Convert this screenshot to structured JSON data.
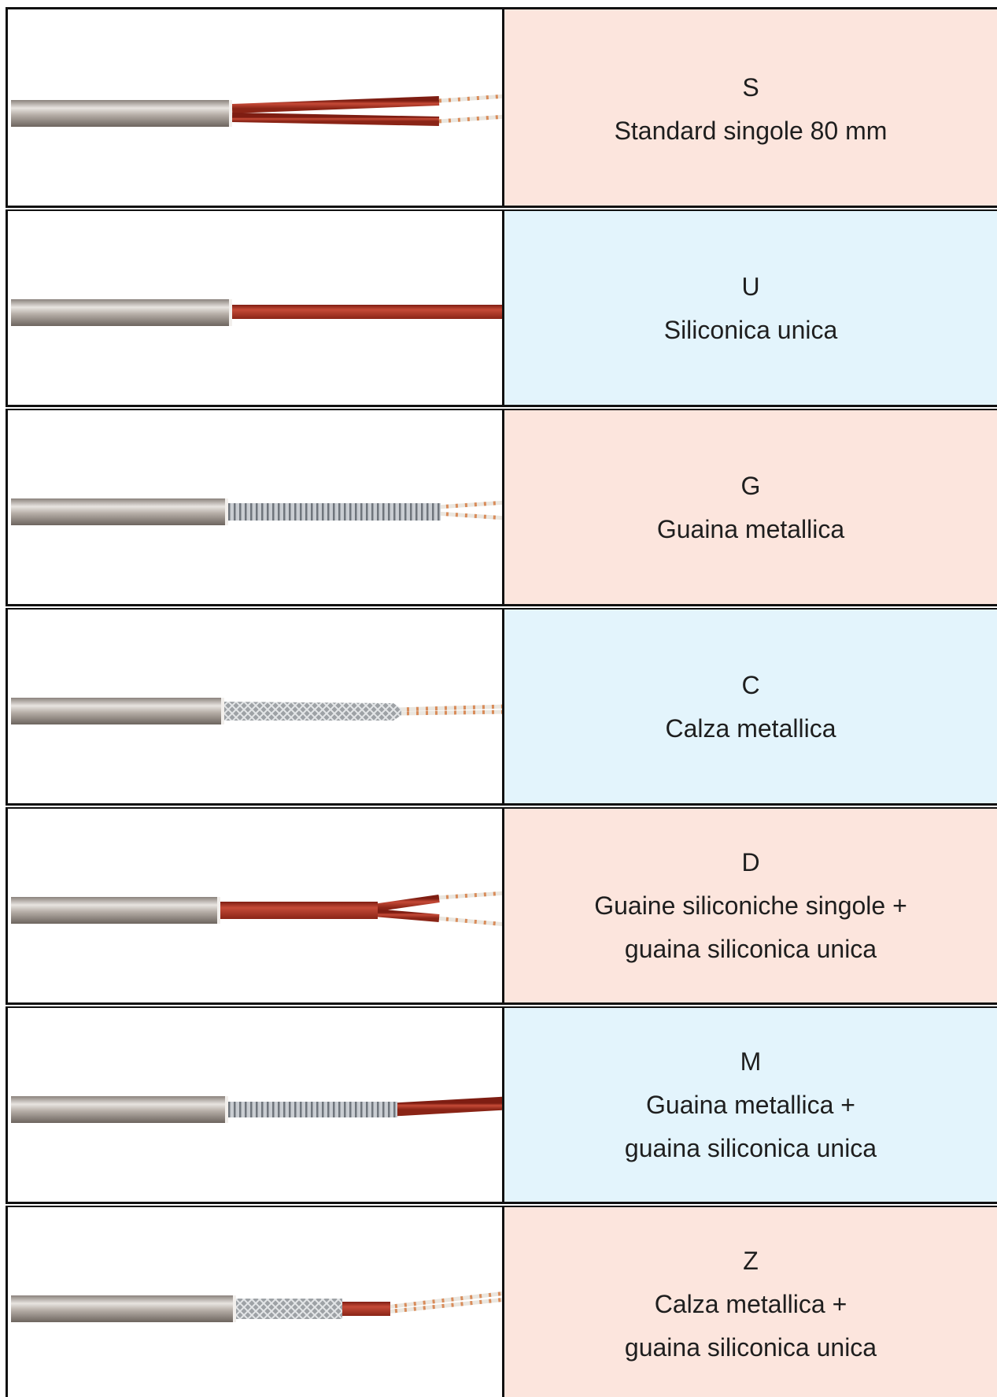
{
  "table": {
    "rows": [
      {
        "code": "S",
        "lines": [
          "Standard singole 80 mm"
        ]
      },
      {
        "code": "U",
        "lines": [
          "Siliconica unica"
        ]
      },
      {
        "code": "G",
        "lines": [
          "Guaina metallica"
        ]
      },
      {
        "code": "C",
        "lines": [
          "Calza metallica"
        ]
      },
      {
        "code": "D",
        "lines": [
          "Guaine siliconiche singole +",
          "guaina siliconica unica"
        ]
      },
      {
        "code": "M",
        "lines": [
          "Guaina metallica +",
          "guaina siliconica unica"
        ]
      },
      {
        "code": "Z",
        "lines": [
          "Calza metallica +",
          "guaina siliconica unica"
        ]
      }
    ]
  }
}
